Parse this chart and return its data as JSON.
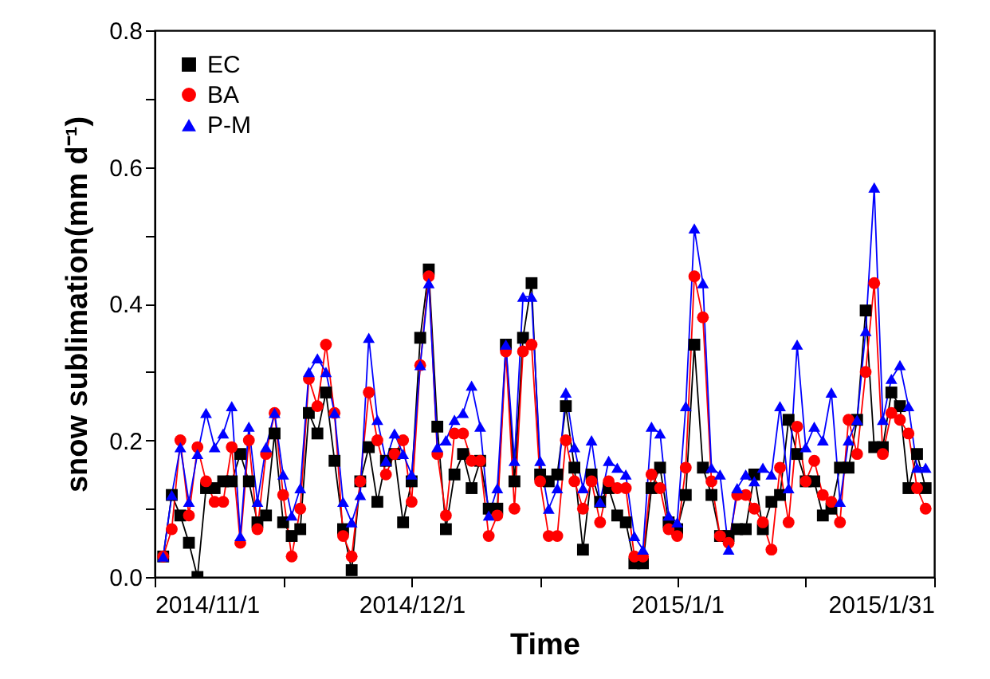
{
  "chart_data": {
    "type": "line",
    "xlabel": "Time",
    "ylabel": "snow sublimation(mm d⁻¹)",
    "x": [
      "2014-11-02",
      "2014-11-03",
      "2014-11-04",
      "2014-11-05",
      "2014-11-06",
      "2014-11-07",
      "2014-11-08",
      "2014-11-09",
      "2014-11-10",
      "2014-11-11",
      "2014-11-12",
      "2014-11-13",
      "2014-11-14",
      "2014-11-15",
      "2014-11-16",
      "2014-11-17",
      "2014-11-18",
      "2014-11-19",
      "2014-11-20",
      "2014-11-21",
      "2014-11-22",
      "2014-11-23",
      "2014-11-24",
      "2014-11-25",
      "2014-11-26",
      "2014-11-27",
      "2014-11-28",
      "2014-11-29",
      "2014-11-30",
      "2014-12-01",
      "2014-12-02",
      "2014-12-03",
      "2014-12-04",
      "2014-12-05",
      "2014-12-06",
      "2014-12-07",
      "2014-12-08",
      "2014-12-09",
      "2014-12-10",
      "2014-12-11",
      "2014-12-12",
      "2014-12-13",
      "2014-12-14",
      "2014-12-15",
      "2014-12-16",
      "2014-12-17",
      "2014-12-18",
      "2014-12-19",
      "2014-12-20",
      "2014-12-21",
      "2014-12-22",
      "2014-12-23",
      "2014-12-24",
      "2014-12-25",
      "2014-12-26",
      "2014-12-27",
      "2014-12-28",
      "2014-12-29",
      "2014-12-30",
      "2014-12-31",
      "2015-01-01",
      "2015-01-02",
      "2015-01-03",
      "2015-01-04",
      "2015-01-05",
      "2015-01-06",
      "2015-01-07",
      "2015-01-08",
      "2015-01-09",
      "2015-01-10",
      "2015-01-11",
      "2015-01-12",
      "2015-01-13",
      "2015-01-14",
      "2015-01-15",
      "2015-01-16",
      "2015-01-17",
      "2015-01-18",
      "2015-01-19",
      "2015-01-20",
      "2015-01-21",
      "2015-01-22",
      "2015-01-23",
      "2015-01-24",
      "2015-01-25",
      "2015-01-26",
      "2015-01-27",
      "2015-01-28",
      "2015-01-29",
      "2015-01-30"
    ],
    "series": [
      {
        "name": "EC",
        "color": "#000000",
        "marker": "square",
        "values": [
          0.03,
          0.12,
          0.09,
          0.05,
          0.0,
          0.13,
          0.13,
          0.14,
          0.14,
          0.18,
          0.14,
          0.08,
          0.09,
          0.21,
          0.08,
          0.06,
          0.07,
          0.24,
          0.21,
          0.27,
          0.17,
          0.07,
          0.01,
          0.14,
          0.19,
          0.11,
          0.17,
          0.18,
          0.08,
          0.14,
          0.35,
          0.45,
          0.22,
          0.07,
          0.15,
          0.18,
          0.13,
          0.17,
          0.1,
          0.1,
          0.34,
          0.14,
          0.35,
          0.43,
          0.15,
          0.14,
          0.15,
          0.25,
          0.16,
          0.04,
          0.15,
          0.11,
          0.13,
          0.09,
          0.08,
          0.02,
          0.02,
          0.13,
          0.16,
          0.08,
          0.07,
          0.12,
          0.34,
          0.16,
          0.12,
          0.06,
          0.06,
          0.07,
          0.07,
          0.15,
          0.07,
          0.11,
          0.12,
          0.23,
          0.18,
          0.14,
          0.14,
          0.09,
          0.1,
          0.16,
          0.16,
          0.23,
          0.39,
          0.19,
          0.19,
          0.27,
          0.25,
          0.13,
          0.18,
          0.13
        ]
      },
      {
        "name": "BA",
        "color": "#ff0000",
        "marker": "circle",
        "values": [
          0.03,
          0.07,
          0.2,
          0.09,
          0.19,
          0.14,
          0.11,
          0.11,
          0.19,
          0.05,
          0.2,
          0.07,
          0.18,
          0.24,
          0.12,
          0.03,
          0.1,
          0.29,
          0.25,
          0.34,
          0.24,
          0.06,
          0.03,
          0.14,
          0.27,
          0.2,
          0.15,
          0.18,
          0.2,
          0.11,
          0.31,
          0.44,
          0.18,
          0.09,
          0.21,
          0.21,
          0.17,
          0.17,
          0.06,
          0.09,
          0.33,
          0.1,
          0.33,
          0.34,
          0.14,
          0.06,
          0.06,
          0.2,
          0.14,
          0.1,
          0.14,
          0.08,
          0.14,
          0.13,
          0.13,
          0.03,
          0.03,
          0.15,
          0.13,
          0.07,
          0.06,
          0.16,
          0.44,
          0.38,
          0.14,
          0.06,
          0.05,
          0.12,
          0.12,
          0.1,
          0.08,
          0.04,
          0.16,
          0.08,
          0.22,
          0.14,
          0.17,
          0.12,
          0.11,
          0.08,
          0.23,
          0.18,
          0.3,
          0.43,
          0.18,
          0.24,
          0.23,
          0.21,
          0.13,
          0.1
        ]
      },
      {
        "name": "P-M",
        "color": "#0000ff",
        "marker": "triangle",
        "values": [
          0.03,
          0.12,
          0.19,
          0.11,
          0.18,
          0.24,
          0.19,
          0.21,
          0.25,
          0.06,
          0.22,
          0.11,
          0.19,
          0.24,
          0.15,
          0.09,
          0.13,
          0.3,
          0.32,
          0.3,
          0.24,
          0.11,
          0.08,
          0.12,
          0.35,
          0.23,
          0.17,
          0.21,
          0.18,
          0.15,
          0.31,
          0.43,
          0.19,
          0.2,
          0.23,
          0.24,
          0.28,
          0.22,
          0.09,
          0.13,
          0.34,
          0.17,
          0.41,
          0.41,
          0.17,
          0.1,
          0.13,
          0.27,
          0.19,
          0.13,
          0.2,
          0.11,
          0.17,
          0.16,
          0.15,
          0.06,
          0.04,
          0.22,
          0.21,
          0.09,
          0.08,
          0.25,
          0.51,
          0.43,
          0.16,
          0.15,
          0.04,
          0.13,
          0.15,
          0.14,
          0.16,
          0.15,
          0.25,
          0.13,
          0.34,
          0.19,
          0.22,
          0.2,
          0.27,
          0.11,
          0.2,
          0.23,
          0.36,
          0.57,
          0.23,
          0.29,
          0.31,
          0.25,
          0.16,
          0.16
        ]
      }
    ],
    "xlim": [
      "2014-11-01",
      "2015-01-31"
    ],
    "xticks": [
      {
        "value": "2014-11-01",
        "label": "2014/11/1"
      },
      {
        "value": "2014-11-16",
        "label": null
      },
      {
        "value": "2014-12-01",
        "label": "2014/12/1"
      },
      {
        "value": "2014-12-16",
        "label": null
      },
      {
        "value": "2015-01-01",
        "label": "2015/1/1"
      },
      {
        "value": "2015-01-16",
        "label": null
      },
      {
        "value": "2015-01-31",
        "label": "2015/1/31"
      }
    ],
    "ylim": [
      0,
      0.8
    ],
    "yticks": [
      {
        "value": 0,
        "label": "0.0"
      },
      {
        "value": 0.1,
        "label": null
      },
      {
        "value": 0.2,
        "label": "0.2"
      },
      {
        "value": 0.3,
        "label": null
      },
      {
        "value": 0.4,
        "label": "0.4"
      },
      {
        "value": 0.5,
        "label": null
      },
      {
        "value": 0.6,
        "label": "0.6"
      },
      {
        "value": 0.7,
        "label": null
      },
      {
        "value": 0.8,
        "label": "0.8"
      }
    ],
    "legend": "top left",
    "grid": false
  }
}
